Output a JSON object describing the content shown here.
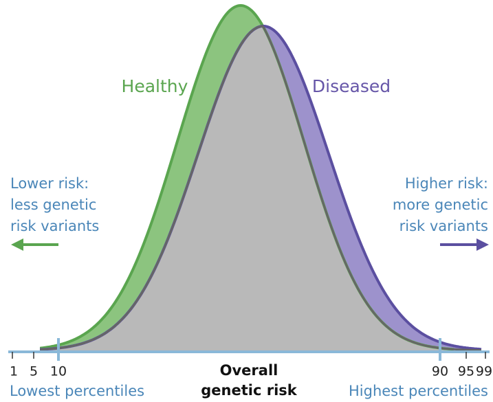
{
  "labels": {
    "healthy": "Healthy",
    "diseased": "Diseased",
    "left_note": [
      "Lower risk:",
      "less genetic",
      "risk variants"
    ],
    "right_note": [
      "Higher risk:",
      "more genetic",
      "risk variants"
    ],
    "axis_title": [
      "Overall",
      "genetic risk"
    ],
    "left_end": "Lowest percentiles",
    "right_end": "Highest percentiles",
    "percentiles": [
      "1",
      "5",
      "10",
      "90",
      "95",
      "99"
    ]
  }
}
